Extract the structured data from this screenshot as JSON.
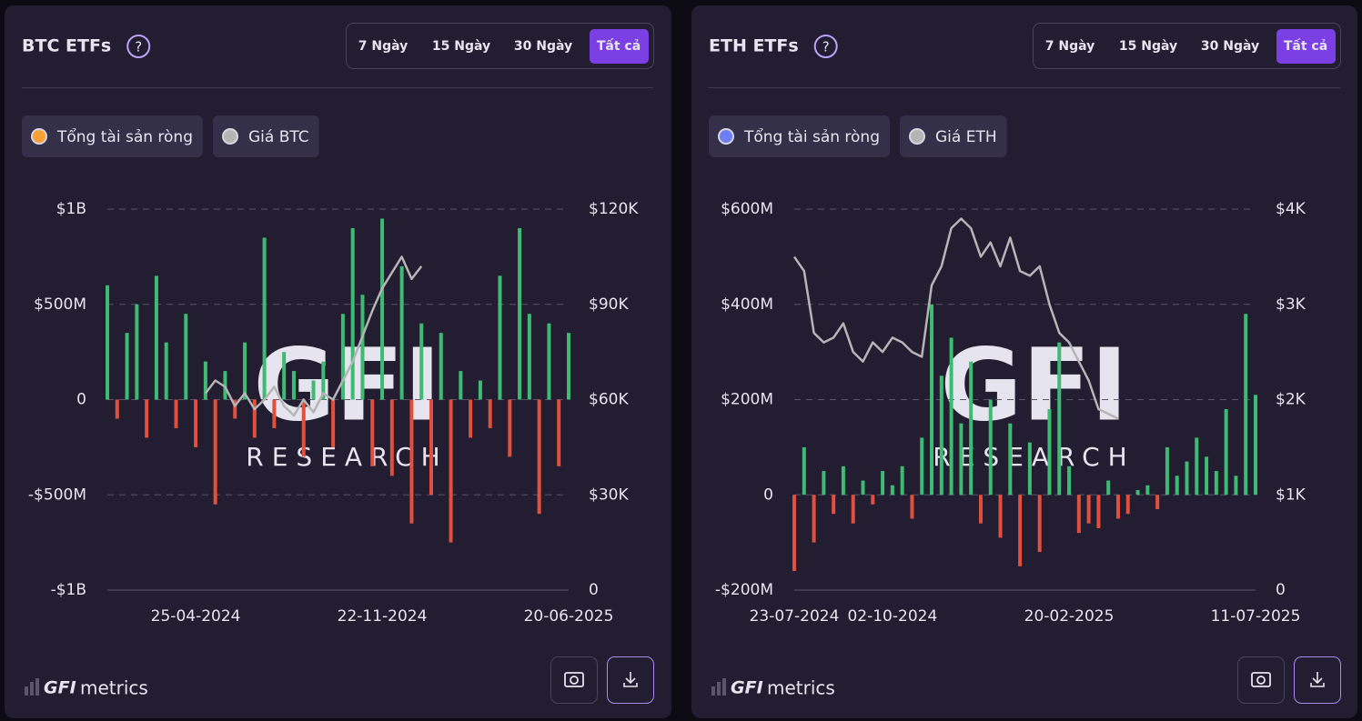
{
  "controls": {
    "ranges": [
      "7 Ngày",
      "15 Ngày",
      "30 Ngày",
      "Tất cả"
    ],
    "active": 3
  },
  "watermark": {
    "logo": "GFI",
    "text": "RESEARCH"
  },
  "footer": {
    "brand": "GFI",
    "product": "metrics"
  },
  "chart_data": [
    {
      "type": "bar",
      "title": "BTC ETFs",
      "help": "?",
      "categories": [
        null,
        null,
        null,
        null,
        null,
        null,
        null,
        null,
        null,
        "25-04-2024",
        null,
        null,
        null,
        null,
        null,
        null,
        null,
        null,
        null,
        null,
        null,
        null,
        null,
        null,
        null,
        null,
        null,
        null,
        "22-11-2024",
        null,
        null,
        null,
        null,
        null,
        null,
        null,
        null,
        null,
        null,
        null,
        null,
        null,
        null,
        null,
        null,
        null,
        null,
        "20-06-2025"
      ],
      "series": [
        {
          "name": "Tổng tài sản ròng",
          "color": "#f7a035",
          "positive_color": "#3dbb72",
          "negative_color": "#e0503c",
          "values": [
            600000000,
            -100000000,
            350000000,
            500000000,
            -200000000,
            650000000,
            300000000,
            -150000000,
            450000000,
            -250000000,
            200000000,
            -550000000,
            150000000,
            -100000000,
            300000000,
            -200000000,
            850000000,
            -150000000,
            250000000,
            150000000,
            -300000000,
            100000000,
            200000000,
            -250000000,
            450000000,
            900000000,
            550000000,
            -350000000,
            950000000,
            -400000000,
            700000000,
            -650000000,
            400000000,
            -500000000,
            350000000,
            -750000000,
            150000000,
            -200000000,
            100000000,
            -150000000,
            650000000,
            -300000000,
            900000000,
            450000000,
            -600000000,
            400000000,
            -350000000,
            350000000
          ]
        },
        {
          "name": "Giá BTC",
          "type": "line",
          "axis": "y2",
          "color": "#b5b5b5",
          "values": [
            null,
            null,
            null,
            null,
            null,
            null,
            null,
            null,
            null,
            null,
            62000,
            66000,
            64000,
            58000,
            62000,
            57000,
            60000,
            64000,
            58000,
            55000,
            60000,
            56000,
            62000,
            60000,
            66000,
            72000,
            80000,
            88000,
            95000,
            100000,
            105000,
            98000,
            102000,
            null,
            null,
            null,
            null,
            null,
            null,
            null,
            null,
            null,
            null,
            null,
            null,
            null,
            null,
            null
          ]
        }
      ],
      "ylim": [
        -1000000000,
        1000000000
      ],
      "yticks": [
        {
          "value": -1000000000,
          "label": "-$1B"
        },
        {
          "value": -500000000,
          "label": "-$500M"
        },
        0,
        {
          "value": 500000000,
          "label": "$500M"
        },
        {
          "value": 1000000000,
          "label": "$1B"
        }
      ],
      "y2lim": [
        0,
        120000
      ],
      "y2ticks": [
        0,
        {
          "value": 30000,
          "label": "$30K"
        },
        {
          "value": 60000,
          "label": "$60K"
        },
        {
          "value": 90000,
          "label": "$90K"
        },
        {
          "value": 120000,
          "label": "$120K"
        }
      ],
      "grid": true
    },
    {
      "type": "bar",
      "title": "ETH ETFs",
      "help": "?",
      "categories": [
        "23-07-2024",
        null,
        null,
        null,
        null,
        null,
        null,
        null,
        null,
        null,
        "02-10-2024",
        null,
        null,
        null,
        null,
        null,
        null,
        null,
        null,
        null,
        null,
        null,
        null,
        null,
        null,
        null,
        null,
        null,
        "20-02-2025",
        null,
        null,
        null,
        null,
        null,
        null,
        null,
        null,
        null,
        null,
        null,
        null,
        null,
        null,
        null,
        null,
        null,
        null,
        "11-07-2025"
      ],
      "series": [
        {
          "name": "Tổng tài sản ròng",
          "color": "#6f7df7",
          "positive_color": "#3dbb72",
          "negative_color": "#e0503c",
          "values": [
            -160000000,
            100000000,
            -100000000,
            50000000,
            -40000000,
            60000000,
            -60000000,
            30000000,
            -20000000,
            50000000,
            20000000,
            60000000,
            -50000000,
            120000000,
            400000000,
            250000000,
            330000000,
            150000000,
            280000000,
            -60000000,
            200000000,
            -90000000,
            150000000,
            -150000000,
            110000000,
            -120000000,
            180000000,
            320000000,
            60000000,
            -80000000,
            -60000000,
            -70000000,
            30000000,
            -50000000,
            -40000000,
            10000000,
            20000000,
            -30000000,
            100000000,
            40000000,
            70000000,
            120000000,
            80000000,
            50000000,
            180000000,
            40000000,
            380000000,
            210000000
          ]
        },
        {
          "name": "Giá ETH",
          "type": "line",
          "axis": "y2",
          "color": "#b5b5b5",
          "values": [
            3500,
            3350,
            2700,
            2600,
            2650,
            2800,
            2500,
            2400,
            2600,
            2500,
            2650,
            2600,
            2500,
            2450,
            3200,
            3400,
            3800,
            3900,
            3800,
            3500,
            3650,
            3400,
            3700,
            3350,
            3300,
            3400,
            3000,
            2700,
            2600,
            2400,
            2200,
            1900,
            1850,
            1800,
            null,
            null,
            null,
            null,
            null,
            null,
            null,
            null,
            null,
            null,
            null,
            null,
            null,
            null
          ]
        }
      ],
      "ylim": [
        -200000000,
        600000000
      ],
      "yticks": [
        {
          "value": -200000000,
          "label": "-$200M"
        },
        0,
        {
          "value": 200000000,
          "label": "$200M"
        },
        {
          "value": 400000000,
          "label": "$400M"
        },
        {
          "value": 600000000,
          "label": "$600M"
        }
      ],
      "y2lim": [
        0,
        4000
      ],
      "y2ticks": [
        0,
        {
          "value": 1000,
          "label": "$1K"
        },
        {
          "value": 2000,
          "label": "$2K"
        },
        {
          "value": 3000,
          "label": "$3K"
        },
        {
          "value": 4000,
          "label": "$4K"
        }
      ],
      "grid": true
    }
  ]
}
